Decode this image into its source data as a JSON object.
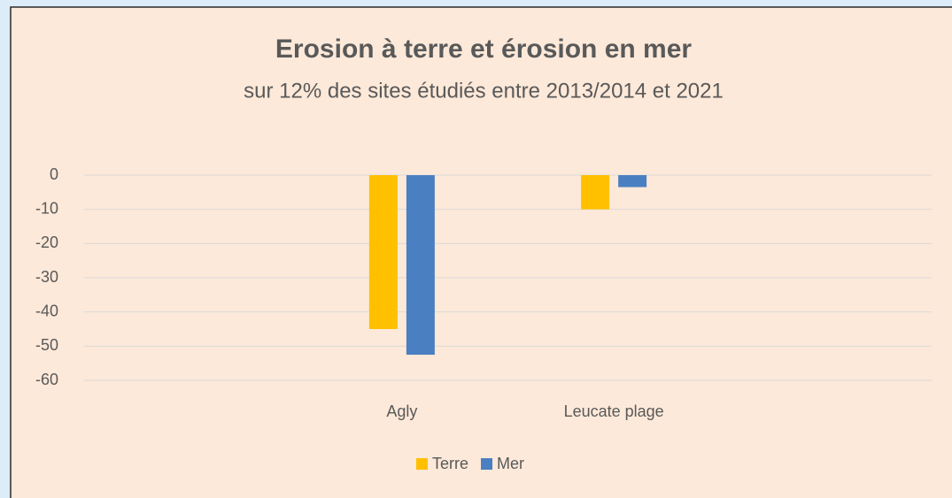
{
  "chart_data": {
    "type": "bar",
    "title": "Erosion à terre et érosion en mer",
    "subtitle": "sur 12% des sites étudiés entre 2013/2014 et 2021",
    "categories": [
      null,
      "Agly",
      "Leucate plage",
      null
    ],
    "series": [
      {
        "name": "Terre",
        "color": "#ffc000",
        "values": [
          null,
          -45,
          -10,
          null
        ]
      },
      {
        "name": "Mer",
        "color": "#4a7fc1",
        "values": [
          null,
          -52.5,
          -3.5,
          null
        ]
      }
    ],
    "ylim": [
      -60,
      0
    ],
    "yticks": [
      0,
      -10,
      -20,
      -30,
      -40,
      -50,
      -60
    ],
    "grid": true,
    "legend": "bottom"
  }
}
